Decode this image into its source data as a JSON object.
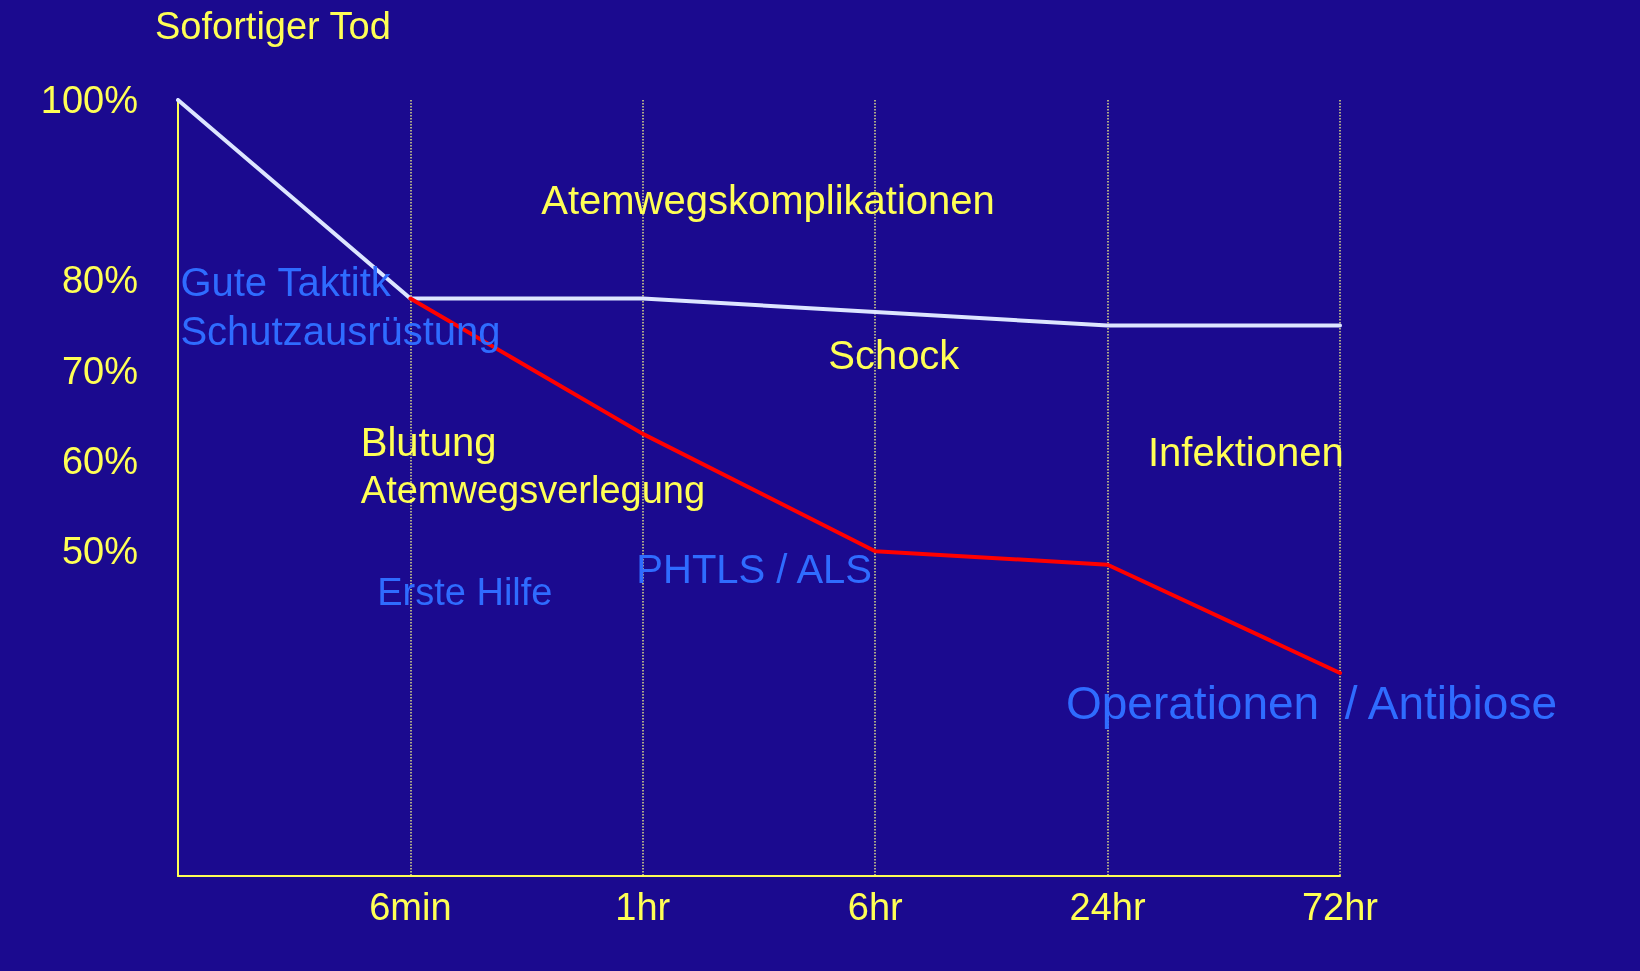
{
  "chart_data": {
    "type": "line",
    "title": "Sofortiger Tod",
    "categories": [
      null,
      "6min",
      "1hr",
      "6hr",
      "24hr",
      "72hr"
    ],
    "series": [
      {
        "color": "#dde6ff",
        "values": [
          100,
          78,
          78,
          76.5,
          75,
          75
        ]
      },
      {
        "color": "#ff0000",
        "values": [
          null,
          78,
          63,
          50,
          48.5,
          36.5
        ]
      }
    ],
    "ylim": [
      14,
      100
    ],
    "yticks": [
      {
        "value": 50,
        "label": "50%"
      },
      {
        "value": 60,
        "label": "60%"
      },
      {
        "value": 70,
        "label": "70%"
      },
      {
        "value": 80,
        "label": "80%"
      },
      {
        "value": 100,
        "label": "100%"
      }
    ],
    "grid": "x",
    "marker": "none",
    "line_style": "solid",
    "annotations": [
      "Atemwegskomplikationen",
      "Gute Taktitk",
      "Schutzausrüstung",
      "Schock",
      "Blutung",
      "Atemwegsverlegung",
      "Infektionen",
      "Erste Hilfe",
      "PHTLS / ALS",
      "Operationen  / Antibiose"
    ]
  }
}
